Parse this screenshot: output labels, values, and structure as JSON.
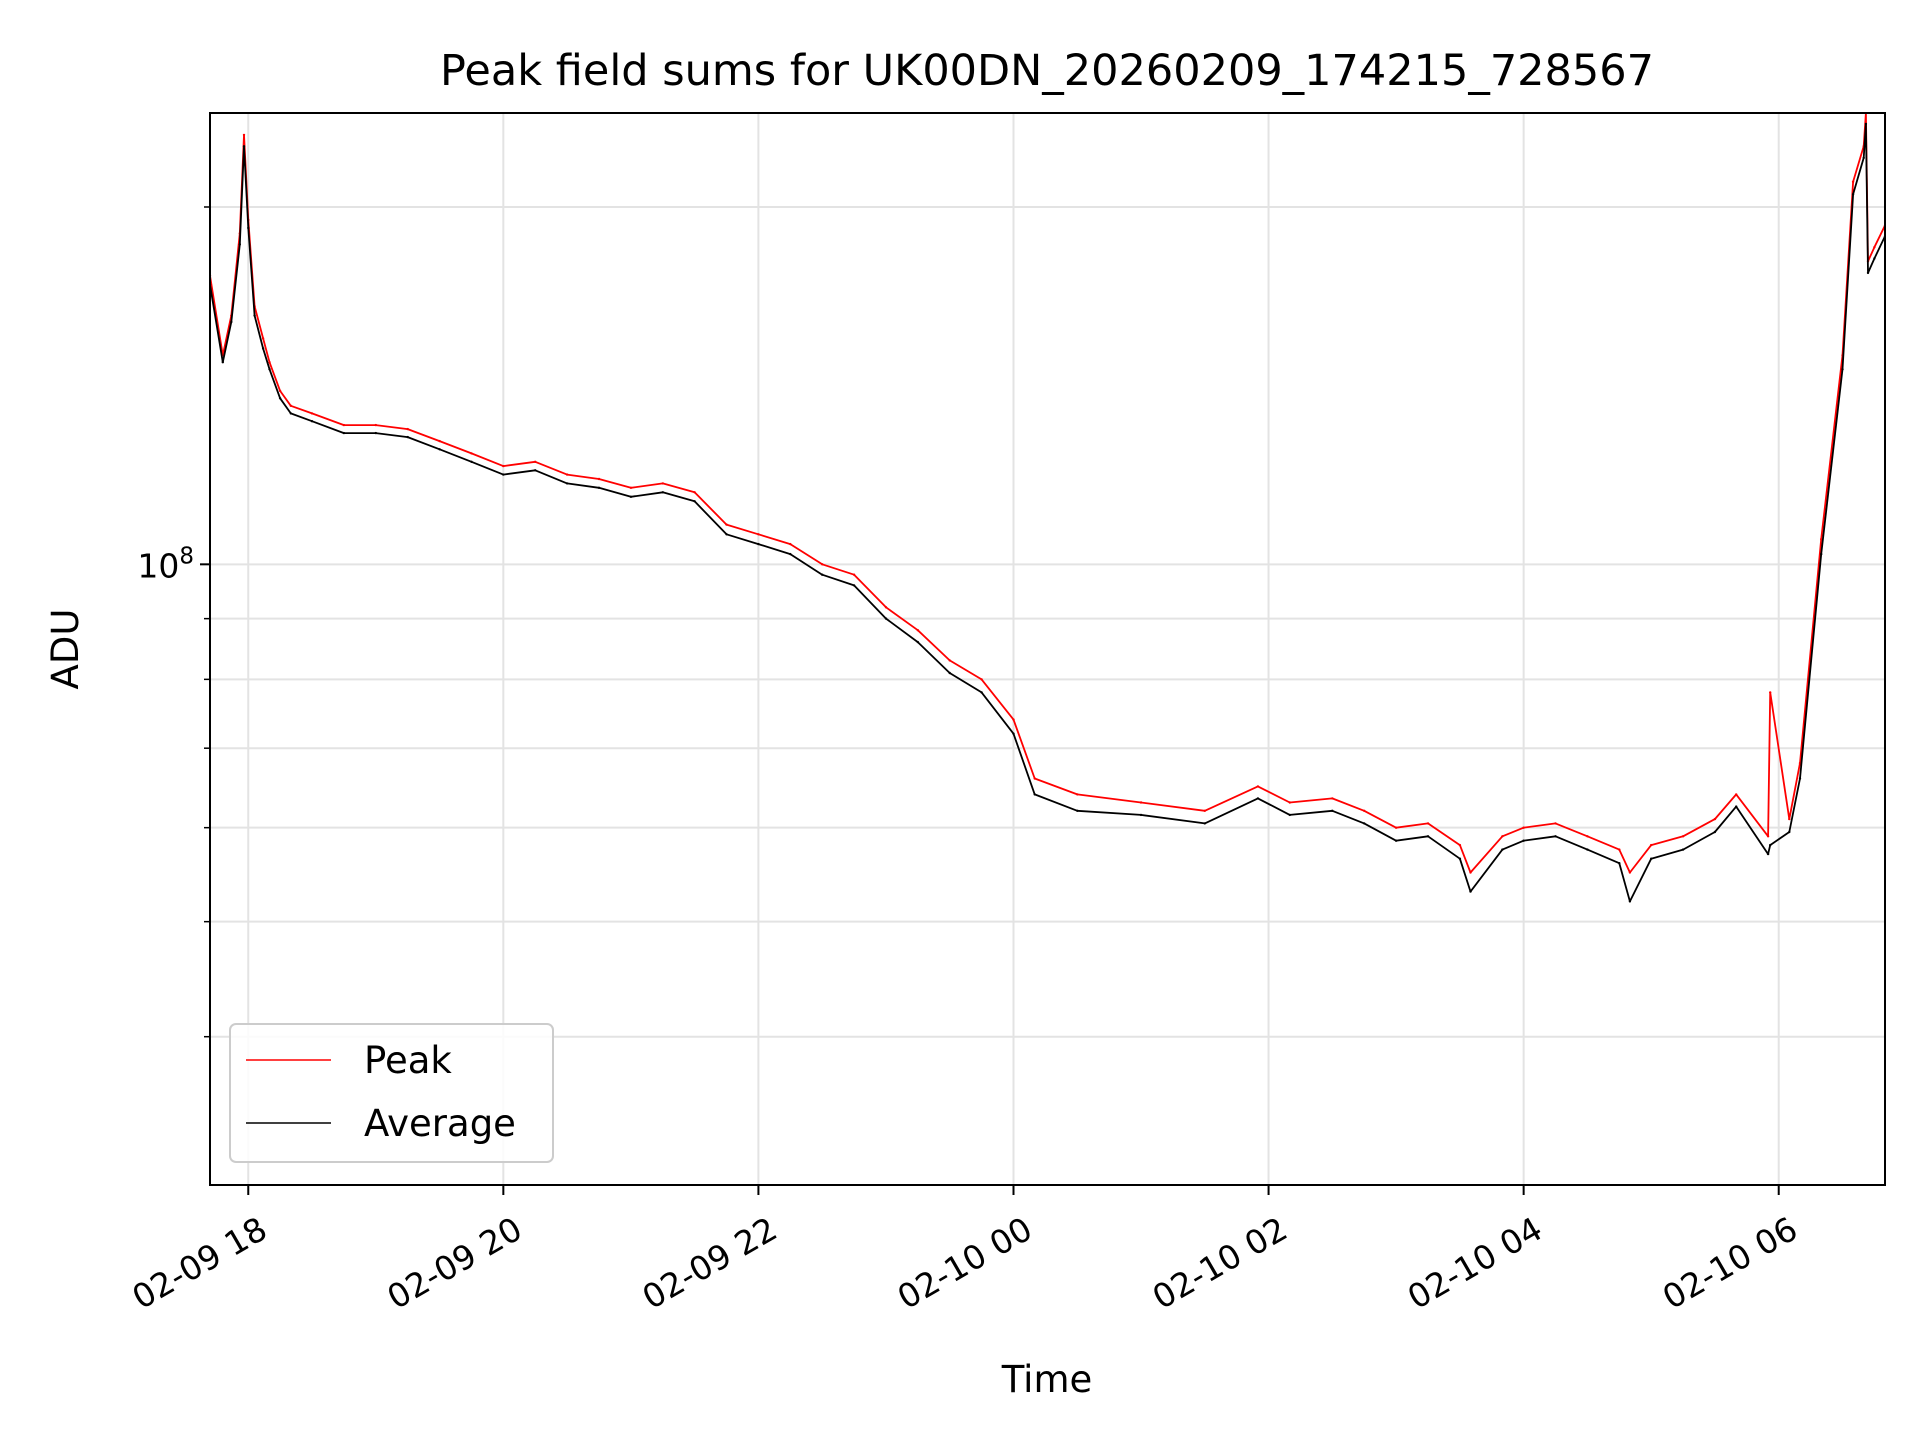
{
  "chart_data": {
    "type": "line",
    "title": "Peak field sums for UK00DN_20260209_174215_728567",
    "xlabel": "Time",
    "ylabel": "ADU",
    "y_scale": "log",
    "grid": true,
    "legend_position": "lower-left",
    "x_range": [
      "2026-02-09T17:42",
      "2026-02-10T06:50"
    ],
    "ylim": [
      30000000,
      240000000
    ],
    "x_ticks": [
      "02-09 18",
      "02-09 20",
      "02-09 22",
      "02-10 00",
      "02-10 02",
      "02-10 04",
      "02-10 06"
    ],
    "x_tick_times": [
      "2026-02-09T18:00",
      "2026-02-09T20:00",
      "2026-02-09T22:00",
      "2026-02-10T00:00",
      "2026-02-10T02:00",
      "2026-02-10T04:00",
      "2026-02-10T06:00"
    ],
    "y_major_ticks": [
      {
        "value": 100000000,
        "base": "10",
        "exponent": "8"
      }
    ],
    "y_minor_ticks": [
      40000000,
      50000000,
      60000000,
      70000000,
      80000000,
      90000000,
      200000000
    ],
    "series": [
      {
        "name": "Peak",
        "color": "#ff0000",
        "x": [
          "2026-02-09T17:42",
          "2026-02-09T17:48",
          "2026-02-09T17:52",
          "2026-02-09T17:56",
          "2026-02-09T17:58",
          "2026-02-09T18:00",
          "2026-02-09T18:03",
          "2026-02-09T18:07",
          "2026-02-09T18:10",
          "2026-02-09T18:15",
          "2026-02-09T18:20",
          "2026-02-09T18:30",
          "2026-02-09T18:45",
          "2026-02-09T19:00",
          "2026-02-09T19:15",
          "2026-02-09T19:30",
          "2026-02-09T19:45",
          "2026-02-09T20:00",
          "2026-02-09T20:15",
          "2026-02-09T20:30",
          "2026-02-09T20:45",
          "2026-02-09T21:00",
          "2026-02-09T21:15",
          "2026-02-09T21:30",
          "2026-02-09T21:45",
          "2026-02-09T22:00",
          "2026-02-09T22:15",
          "2026-02-09T22:30",
          "2026-02-09T22:45",
          "2026-02-09T23:00",
          "2026-02-09T23:15",
          "2026-02-09T23:30",
          "2026-02-09T23:45",
          "2026-02-10T00:00",
          "2026-02-10T00:10",
          "2026-02-10T00:30",
          "2026-02-10T01:00",
          "2026-02-10T01:30",
          "2026-02-10T01:55",
          "2026-02-10T02:10",
          "2026-02-10T02:30",
          "2026-02-10T02:45",
          "2026-02-10T03:00",
          "2026-02-10T03:15",
          "2026-02-10T03:30",
          "2026-02-10T03:35",
          "2026-02-10T03:50",
          "2026-02-10T04:00",
          "2026-02-10T04:15",
          "2026-02-10T04:30",
          "2026-02-10T04:45",
          "2026-02-10T04:50",
          "2026-02-10T05:00",
          "2026-02-10T05:15",
          "2026-02-10T05:30",
          "2026-02-10T05:40",
          "2026-02-10T05:55",
          "2026-02-10T05:56",
          "2026-02-10T06:05",
          "2026-02-10T06:10",
          "2026-02-10T06:20",
          "2026-02-10T06:30",
          "2026-02-10T06:35",
          "2026-02-10T06:40",
          "2026-02-10T06:41",
          "2026-02-10T06:42",
          "2026-02-10T06:45",
          "2026-02-10T06:50"
        ],
        "y": [
          175000000,
          150000000,
          162000000,
          190000000,
          230000000,
          195000000,
          165000000,
          155000000,
          148000000,
          140000000,
          136000000,
          134000000,
          131000000,
          131000000,
          130000000,
          127000000,
          124000000,
          121000000,
          122000000,
          119000000,
          118000000,
          116000000,
          117000000,
          115000000,
          108000000,
          106000000,
          104000000,
          100000000,
          98000000,
          92000000,
          88000000,
          83000000,
          80000000,
          74000000,
          66000000,
          64000000,
          63000000,
          62000000,
          65000000,
          63000000,
          63500000,
          62000000,
          60000000,
          60500000,
          58000000,
          55000000,
          59000000,
          60000000,
          60500000,
          59000000,
          57500000,
          55000000,
          58000000,
          59000000,
          61000000,
          64000000,
          59000000,
          78000000,
          61000000,
          68000000,
          105000000,
          150000000,
          210000000,
          225000000,
          240000000,
          180000000,
          185000000,
          193000000
        ]
      },
      {
        "name": "Average",
        "color": "#000000",
        "x": [
          "2026-02-09T17:42",
          "2026-02-09T17:48",
          "2026-02-09T17:52",
          "2026-02-09T17:56",
          "2026-02-09T17:58",
          "2026-02-09T18:00",
          "2026-02-09T18:03",
          "2026-02-09T18:07",
          "2026-02-09T18:10",
          "2026-02-09T18:15",
          "2026-02-09T18:20",
          "2026-02-09T18:30",
          "2026-02-09T18:45",
          "2026-02-09T19:00",
          "2026-02-09T19:15",
          "2026-02-09T19:30",
          "2026-02-09T19:45",
          "2026-02-09T20:00",
          "2026-02-09T20:15",
          "2026-02-09T20:30",
          "2026-02-09T20:45",
          "2026-02-09T21:00",
          "2026-02-09T21:15",
          "2026-02-09T21:30",
          "2026-02-09T21:45",
          "2026-02-09T22:00",
          "2026-02-09T22:15",
          "2026-02-09T22:30",
          "2026-02-09T22:45",
          "2026-02-09T23:00",
          "2026-02-09T23:15",
          "2026-02-09T23:30",
          "2026-02-09T23:45",
          "2026-02-10T00:00",
          "2026-02-10T00:10",
          "2026-02-10T00:30",
          "2026-02-10T01:00",
          "2026-02-10T01:30",
          "2026-02-10T01:55",
          "2026-02-10T02:10",
          "2026-02-10T02:30",
          "2026-02-10T02:45",
          "2026-02-10T03:00",
          "2026-02-10T03:15",
          "2026-02-10T03:30",
          "2026-02-10T03:35",
          "2026-02-10T03:50",
          "2026-02-10T04:00",
          "2026-02-10T04:15",
          "2026-02-10T04:30",
          "2026-02-10T04:45",
          "2026-02-10T04:50",
          "2026-02-10T05:00",
          "2026-02-10T05:15",
          "2026-02-10T05:30",
          "2026-02-10T05:40",
          "2026-02-10T05:55",
          "2026-02-10T05:56",
          "2026-02-10T06:05",
          "2026-02-10T06:10",
          "2026-02-10T06:20",
          "2026-02-10T06:30",
          "2026-02-10T06:35",
          "2026-02-10T06:40",
          "2026-02-10T06:41",
          "2026-02-10T06:42",
          "2026-02-10T06:45",
          "2026-02-10T06:50"
        ],
        "y": [
          172000000,
          148000000,
          160000000,
          186000000,
          225000000,
          192000000,
          162000000,
          152000000,
          146000000,
          138000000,
          134000000,
          132000000,
          129000000,
          129000000,
          128000000,
          125000000,
          122000000,
          119000000,
          120000000,
          117000000,
          116000000,
          114000000,
          115000000,
          113000000,
          106000000,
          104000000,
          102000000,
          98000000,
          96000000,
          90000000,
          86000000,
          81000000,
          78000000,
          72000000,
          64000000,
          62000000,
          61500000,
          60500000,
          63500000,
          61500000,
          62000000,
          60500000,
          58500000,
          59000000,
          56500000,
          53000000,
          57500000,
          58500000,
          59000000,
          57500000,
          56000000,
          52000000,
          56500000,
          57500000,
          59500000,
          62500000,
          57000000,
          58000000,
          59500000,
          66000000,
          102000000,
          146000000,
          205000000,
          220000000,
          235000000,
          176000000,
          181000000,
          189000000
        ]
      }
    ]
  }
}
